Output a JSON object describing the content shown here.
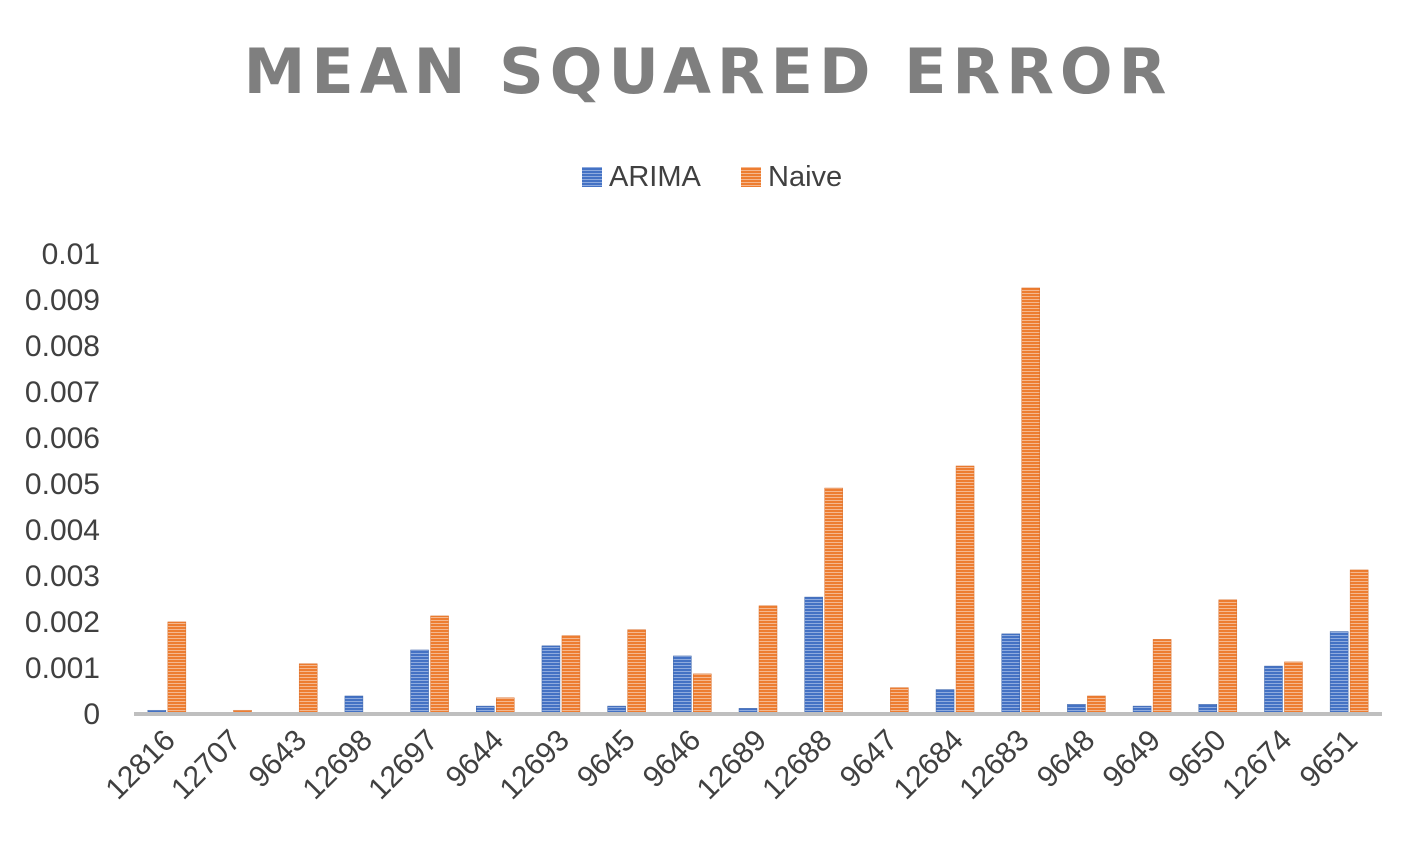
{
  "chart_data": {
    "type": "bar",
    "title": "MEAN SQUARED ERROR",
    "xlabel": "",
    "ylabel": "",
    "ylim": [
      0,
      0.01
    ],
    "yticks": [
      "0",
      "0.001",
      "0.002",
      "0.003",
      "0.004",
      "0.005",
      "0.006",
      "0.007",
      "0.008",
      "0.009",
      "0.01"
    ],
    "categories": [
      "12816",
      "12707",
      "9643",
      "12698",
      "12697",
      "9644",
      "12693",
      "9645",
      "9646",
      "12689",
      "12688",
      "9647",
      "12684",
      "12683",
      "9648",
      "9649",
      "9650",
      "12674",
      "9651"
    ],
    "series": [
      {
        "name": "ARIMA",
        "color": "#4472c4",
        "values": [
          6e-05,
          0.0,
          0.0,
          0.00037,
          0.00137,
          0.00015,
          0.00146,
          0.00015,
          0.00124,
          0.0001,
          0.00252,
          0.0,
          0.00051,
          0.00172,
          0.00019,
          0.00015,
          0.00019,
          0.00102,
          0.00177
        ]
      },
      {
        "name": "Naive",
        "color": "#ed7d31",
        "values": [
          0.00198,
          6e-05,
          0.00107,
          0.0,
          0.00211,
          0.00033,
          0.00168,
          0.00181,
          0.00085,
          0.00233,
          0.00489,
          0.00055,
          0.00537,
          0.00924,
          0.00037,
          0.0016,
          0.00246,
          0.00111,
          0.00311
        ]
      }
    ],
    "grid": false,
    "legend_position": "top"
  }
}
